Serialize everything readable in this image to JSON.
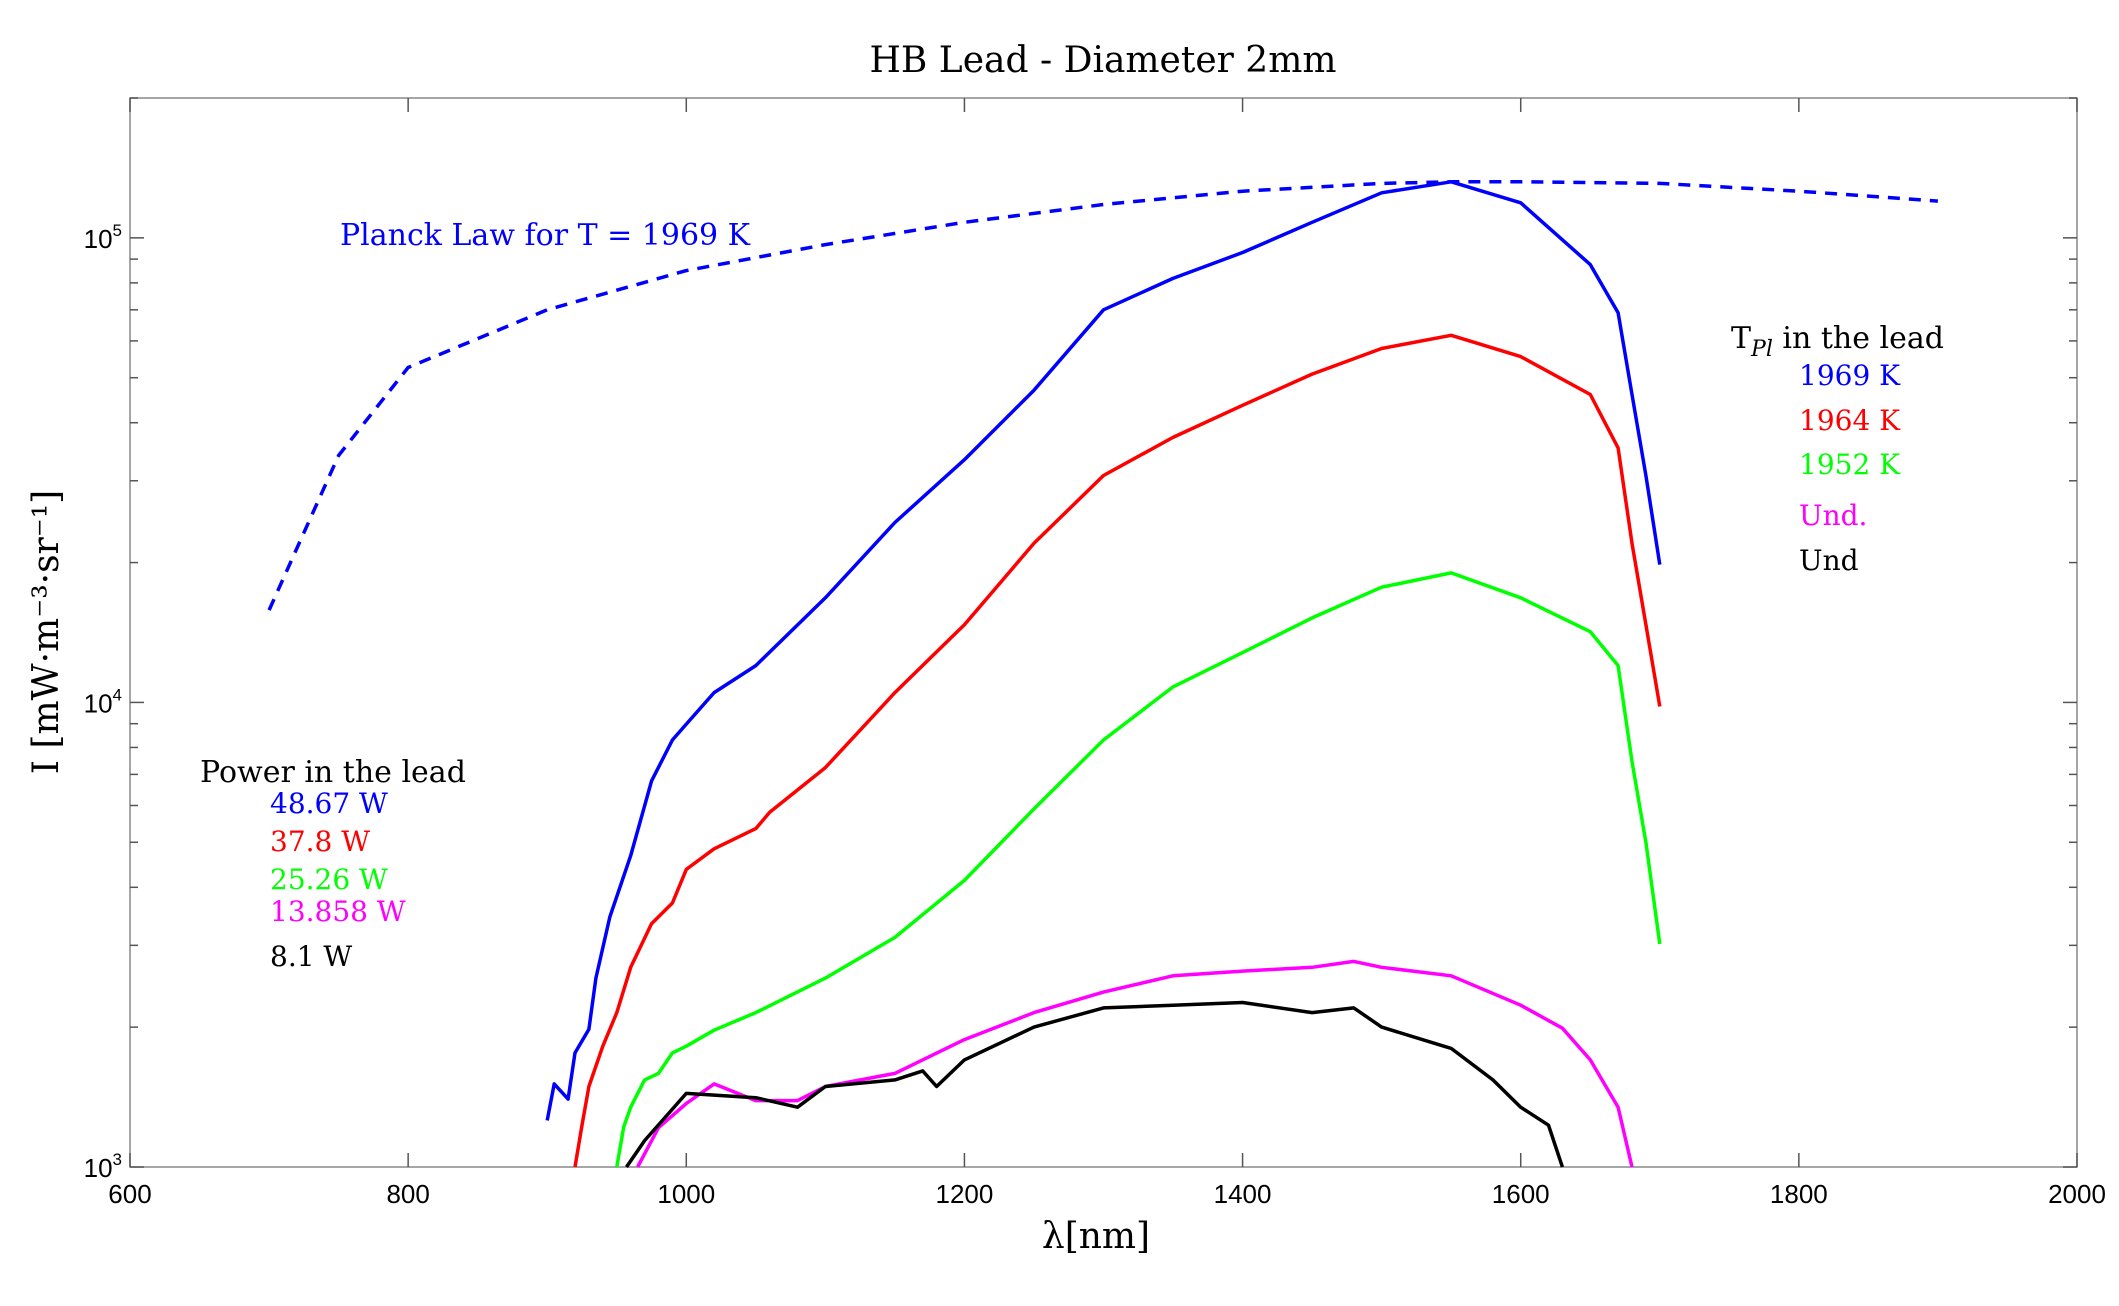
{
  "chart_data": {
    "type": "line",
    "title": "HB Lead - Diameter 2mm",
    "xlabel": "λ[nm]",
    "ylabel": "I [mW·m⁻³·sr⁻¹]",
    "xlim": [
      600,
      2000
    ],
    "ylim": [
      1000,
      200000
    ],
    "yscale": "log",
    "grid": false,
    "x_ticks": [
      600,
      800,
      1000,
      1200,
      1400,
      1600,
      1800,
      2000
    ],
    "y_ticks": [
      {
        "value": 1000,
        "base": "10",
        "exp": "3"
      },
      {
        "value": 10000,
        "base": "10",
        "exp": "4"
      },
      {
        "value": 100000,
        "base": "10",
        "exp": "5"
      }
    ],
    "annotation": {
      "text": "Planck Law for T  = 1969 K",
      "color": "#0000ff"
    },
    "legend_power": {
      "title": "Power in the lead",
      "placement": "left-middle",
      "entries": [
        "48.67 W",
        "37.8 W",
        "25.26 W",
        "13.858 W",
        "8.1 W"
      ]
    },
    "legend_temp": {
      "title": "T_Pl in the lead",
      "title_main": "T",
      "title_sub": "Pl",
      "title_rest": " in the lead",
      "placement": "right",
      "entries": [
        "1969 K",
        "1964 K",
        "1952 K",
        "Und.",
        "Und"
      ]
    },
    "series": [
      {
        "name": "Planck Law T=1969 K",
        "color": "#0000ff",
        "dashed": true,
        "x": [
          700,
          750,
          800,
          900,
          1000,
          1100,
          1200,
          1300,
          1400,
          1500,
          1550,
          1600,
          1700,
          1800,
          1900
        ],
        "y": [
          15800,
          34000,
          52600,
          70000,
          85000,
          96700,
          108000,
          118000,
          126000,
          131000,
          132000,
          132000,
          131000,
          126000,
          120000
        ]
      },
      {
        "name": "48.67 W / 1969 K",
        "color": "#0000ff",
        "dashed": false,
        "x": [
          900,
          905,
          915,
          920,
          930,
          935,
          945,
          960,
          975,
          990,
          1000,
          1020,
          1050,
          1100,
          1150,
          1200,
          1250,
          1300,
          1350,
          1400,
          1450,
          1500,
          1550,
          1600,
          1650,
          1670,
          1680,
          1690,
          1700
        ],
        "y": [
          1260,
          1510,
          1400,
          1760,
          1980,
          2550,
          3450,
          4680,
          6770,
          8300,
          8980,
          10500,
          12000,
          16800,
          24400,
          33300,
          47000,
          70000,
          81800,
          93000,
          108000,
          125000,
          132000,
          119000,
          87600,
          69000,
          46000,
          30800,
          19800
        ]
      },
      {
        "name": "37.8 W / 1964 K",
        "color": "#ff0000",
        "dashed": false,
        "x": [
          920,
          925,
          930,
          940,
          950,
          960,
          975,
          990,
          1000,
          1020,
          1050,
          1060,
          1100,
          1150,
          1200,
          1250,
          1300,
          1350,
          1400,
          1450,
          1500,
          1550,
          1600,
          1650,
          1670,
          1680,
          1690,
          1700
        ],
        "y": [
          1000,
          1230,
          1490,
          1820,
          2150,
          2690,
          3340,
          3700,
          4370,
          4840,
          5350,
          5800,
          7240,
          10500,
          14700,
          22000,
          30800,
          37200,
          43600,
          50900,
          57800,
          61700,
          55500,
          46000,
          35300,
          22000,
          14700,
          9800
        ]
      },
      {
        "name": "25.26 W / 1952 K",
        "color": "#00ff00",
        "dashed": false,
        "x": [
          950,
          955,
          960,
          970,
          980,
          990,
          1000,
          1020,
          1050,
          1100,
          1150,
          1200,
          1250,
          1300,
          1350,
          1400,
          1450,
          1500,
          1550,
          1600,
          1650,
          1670,
          1680,
          1690,
          1700
        ],
        "y": [
          1000,
          1220,
          1345,
          1540,
          1590,
          1760,
          1820,
          1970,
          2150,
          2550,
          3120,
          4140,
          5900,
          8300,
          10800,
          12800,
          15200,
          17700,
          19000,
          16800,
          14200,
          12000,
          7460,
          5000,
          3020
        ]
      },
      {
        "name": "13.858 W / Und.",
        "color": "#ff00ff",
        "dashed": false,
        "x": [
          965,
          980,
          1000,
          1020,
          1050,
          1080,
          1100,
          1150,
          1200,
          1250,
          1300,
          1350,
          1400,
          1450,
          1480,
          1500,
          1550,
          1600,
          1630,
          1650,
          1670,
          1680
        ],
        "y": [
          1000,
          1215,
          1370,
          1510,
          1390,
          1390,
          1490,
          1590,
          1880,
          2150,
          2380,
          2580,
          2640,
          2690,
          2770,
          2690,
          2580,
          2230,
          1990,
          1700,
          1345,
          1000
        ]
      },
      {
        "name": "8.1 W / Und",
        "color": "#000000",
        "dashed": false,
        "x": [
          957,
          970,
          1000,
          1050,
          1080,
          1100,
          1150,
          1170,
          1180,
          1200,
          1250,
          1300,
          1350,
          1400,
          1450,
          1480,
          1500,
          1550,
          1580,
          1600,
          1620,
          1630
        ],
        "y": [
          1000,
          1140,
          1440,
          1410,
          1345,
          1490,
          1540,
          1610,
          1490,
          1700,
          2000,
          2200,
          2230,
          2260,
          2150,
          2200,
          2000,
          1800,
          1540,
          1345,
          1230,
          1000
        ]
      }
    ]
  }
}
